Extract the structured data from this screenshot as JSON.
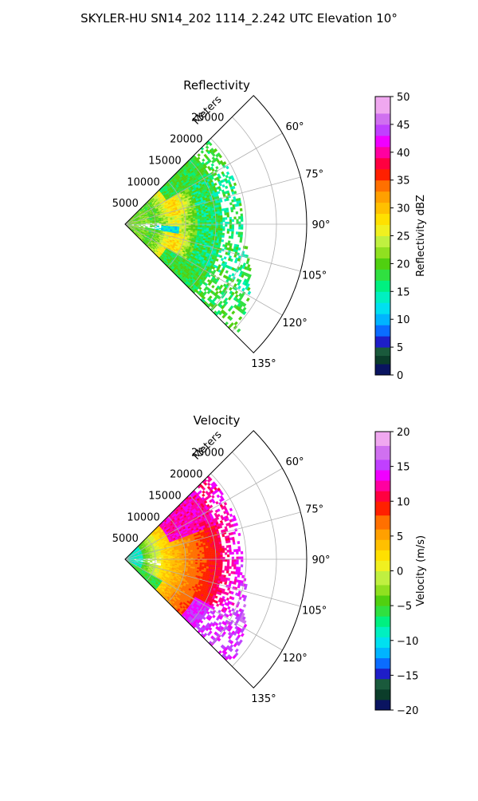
{
  "page_title": "SKYLER-HU  SN14_202  1114_2.242 UTC Elevation 10°",
  "chart_data": [
    {
      "type": "polar-sector",
      "title": "Reflectivity",
      "radial_label": "Meters",
      "r_ticks": [
        5000,
        10000,
        15000,
        20000,
        25000
      ],
      "r_max": 30000,
      "theta_min_deg": 45,
      "theta_max_deg": 135,
      "theta_ticks": [
        60,
        75,
        90,
        105,
        120,
        135
      ],
      "theta_tick_suffix": "°",
      "grid": true,
      "colorbar": {
        "label": "Reflectivity dBZ",
        "min": 0,
        "max": 50,
        "ticks": [
          0,
          5,
          10,
          15,
          20,
          25,
          30,
          35,
          40,
          45,
          50
        ],
        "stops": [
          [
            0,
            "#0a1460"
          ],
          [
            2,
            "#0b3d2a"
          ],
          [
            3.5,
            "#1a5a3c"
          ],
          [
            5,
            "#1e1ec8"
          ],
          [
            7,
            "#0a6cff"
          ],
          [
            9,
            "#00b4ff"
          ],
          [
            11,
            "#00e0f0"
          ],
          [
            13,
            "#00f0c0"
          ],
          [
            15,
            "#00f080"
          ],
          [
            17,
            "#30e040"
          ],
          [
            19,
            "#50d010"
          ],
          [
            21,
            "#90e020"
          ],
          [
            23,
            "#c0f040"
          ],
          [
            25,
            "#f0f020"
          ],
          [
            27,
            "#ffe000"
          ],
          [
            29,
            "#ffc000"
          ],
          [
            31,
            "#ffa000"
          ],
          [
            33,
            "#ff7000"
          ],
          [
            35,
            "#ff2000"
          ],
          [
            37,
            "#ff0040"
          ],
          [
            39,
            "#ff00a0"
          ],
          [
            41,
            "#f000ff"
          ],
          [
            43,
            "#c040ff"
          ],
          [
            45,
            "#d070f0"
          ],
          [
            47,
            "#f0a8f0"
          ],
          [
            50,
            "#fde8fd"
          ]
        ]
      }
    },
    {
      "type": "polar-sector",
      "title": "Velocity",
      "radial_label": "Meters",
      "r_ticks": [
        5000,
        10000,
        15000,
        20000,
        25000
      ],
      "r_max": 30000,
      "theta_min_deg": 45,
      "theta_max_deg": 135,
      "theta_ticks": [
        60,
        75,
        90,
        105,
        120,
        135
      ],
      "theta_tick_suffix": "°",
      "grid": true,
      "colorbar": {
        "label": "Velocity (m/s)",
        "min": -20,
        "max": 20,
        "ticks": [
          -20,
          -15,
          -10,
          -5,
          0,
          5,
          10,
          15,
          20
        ],
        "stops": [
          [
            -20,
            "#0a1460"
          ],
          [
            -18.5,
            "#0b3d2a"
          ],
          [
            -17,
            "#1a5a3c"
          ],
          [
            -15.5,
            "#1e1ec8"
          ],
          [
            -14,
            "#0a6cff"
          ],
          [
            -12.5,
            "#00b4ff"
          ],
          [
            -11,
            "#00e0f0"
          ],
          [
            -9.5,
            "#00f0c0"
          ],
          [
            -8,
            "#00f080"
          ],
          [
            -6.5,
            "#30e040"
          ],
          [
            -5,
            "#50d010"
          ],
          [
            -3.5,
            "#90e020"
          ],
          [
            -2,
            "#c0f040"
          ],
          [
            0,
            "#f0f020"
          ],
          [
            1.5,
            "#ffe000"
          ],
          [
            3,
            "#ffc000"
          ],
          [
            4.5,
            "#ffa000"
          ],
          [
            6,
            "#ff7000"
          ],
          [
            8,
            "#ff2000"
          ],
          [
            10,
            "#ff0040"
          ],
          [
            11.5,
            "#ff00a0"
          ],
          [
            13,
            "#f000ff"
          ],
          [
            14.5,
            "#c040ff"
          ],
          [
            16,
            "#d070f0"
          ],
          [
            18,
            "#f0a8f0"
          ],
          [
            20,
            "#fde8fd"
          ]
        ]
      }
    }
  ]
}
